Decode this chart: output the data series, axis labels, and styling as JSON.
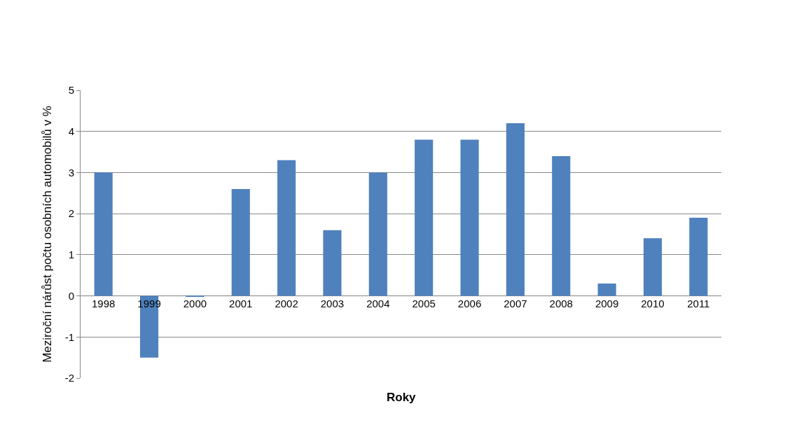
{
  "chart_data": {
    "type": "bar",
    "xlabel": "Roky",
    "ylabel": "Meziroční nárůst počtu osobních automobilů v %",
    "categories": [
      "1998",
      "1999",
      "2000",
      "2001",
      "2002",
      "2003",
      "2004",
      "2005",
      "2006",
      "2007",
      "2008",
      "2009",
      "2010",
      "2011"
    ],
    "values": [
      3.0,
      -1.5,
      -0.02,
      2.6,
      3.3,
      1.6,
      3.0,
      3.8,
      3.8,
      4.2,
      3.4,
      0.3,
      1.4,
      1.9
    ],
    "color": "#4f81bd",
    "ylim": [
      -2,
      5
    ],
    "yticks": [
      -2,
      -1,
      0,
      1,
      2,
      3,
      4,
      5
    ],
    "grid": "y"
  }
}
